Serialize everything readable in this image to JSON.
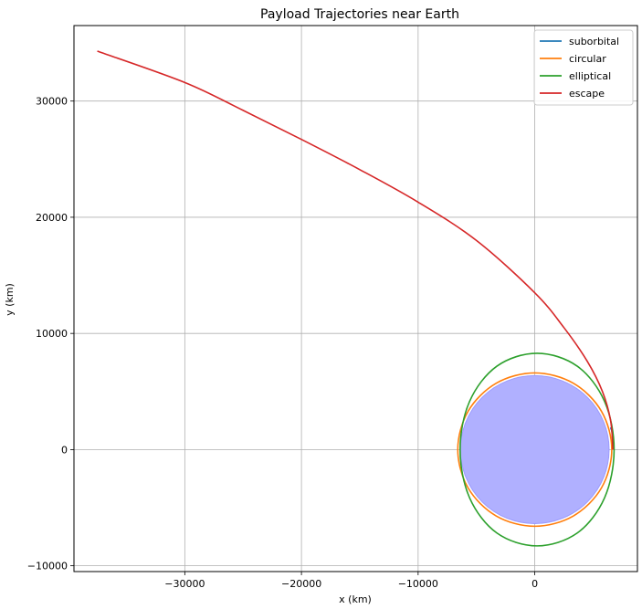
{
  "chart_data": {
    "type": "line",
    "title": "Payload Trajectories near Earth",
    "xlabel": "x (km)",
    "ylabel": "y (km)",
    "xlim": [
      -39500,
      8800
    ],
    "ylim": [
      -10500,
      36500
    ],
    "xticks": [
      -30000,
      -20000,
      -10000,
      0
    ],
    "yticks": [
      -10000,
      0,
      10000,
      20000,
      30000
    ],
    "xtick_labels": [
      "−30000",
      "−20000",
      "−10000",
      "0"
    ],
    "ytick_labels": [
      "−10000",
      "0",
      "10000",
      "20000",
      "30000"
    ],
    "grid": true,
    "legend_position": "top-right",
    "earth": {
      "radius_km": 6371,
      "color": "#b0b0ff"
    },
    "series": [
      {
        "name": "suborbital",
        "color": "#1f77b4",
        "points": [
          [
            6500,
            1900
          ],
          [
            6630,
            1500
          ],
          [
            6680,
            1100
          ],
          [
            6700,
            700
          ]
        ]
      },
      {
        "name": "circular",
        "color": "#ff7f0e",
        "points": [
          [
            6600,
            0
          ],
          [
            5716,
            3300
          ],
          [
            3300,
            5716
          ],
          [
            0,
            6600
          ],
          [
            -3300,
            5716
          ],
          [
            -5716,
            3300
          ],
          [
            -6600,
            0
          ],
          [
            -5716,
            -3300
          ],
          [
            -3300,
            -5716
          ],
          [
            0,
            -6600
          ],
          [
            3300,
            -5716
          ],
          [
            5716,
            -3300
          ],
          [
            6600,
            0
          ]
        ]
      },
      {
        "name": "elliptical",
        "color": "#2ca02c",
        "points": [
          [
            6800,
            0
          ],
          [
            5984,
            4145
          ],
          [
            3643,
            7180
          ],
          [
            197,
            8290
          ],
          [
            -3250,
            7180
          ],
          [
            -5590,
            4145
          ],
          [
            -6400,
            0
          ],
          [
            -5590,
            -4145
          ],
          [
            -3250,
            -7180
          ],
          [
            197,
            -8290
          ],
          [
            3643,
            -7180
          ],
          [
            5984,
            -4145
          ],
          [
            6800,
            0
          ]
        ]
      },
      {
        "name": "escape",
        "color": "#d62728",
        "points": [
          [
            6700,
            0
          ],
          [
            6500,
            2500
          ],
          [
            5800,
            5000
          ],
          [
            4500,
            7600
          ],
          [
            2500,
            10500
          ],
          [
            0,
            13500
          ],
          [
            -5000,
            18000
          ],
          [
            -10000,
            21300
          ],
          [
            -15000,
            24100
          ],
          [
            -20000,
            26700
          ],
          [
            -25000,
            29200
          ],
          [
            -30000,
            31600
          ],
          [
            -37500,
            34300
          ]
        ]
      }
    ]
  }
}
